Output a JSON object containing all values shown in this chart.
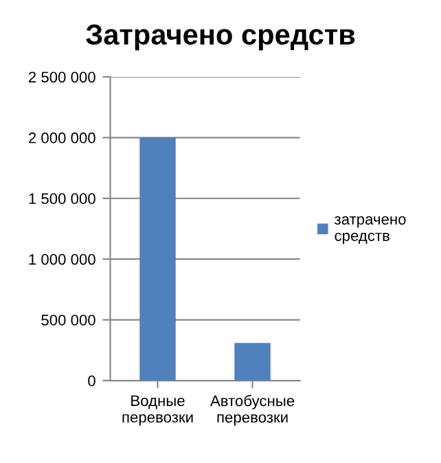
{
  "chart_data": {
    "type": "bar",
    "title": "Затрачено средств",
    "categories": [
      "Водные\nперевозки",
      "Автобусные\nперевозки"
    ],
    "series": [
      {
        "name": "затрачено\nсредств",
        "color": "#4f81bd",
        "values": [
          2000000,
          310000
        ]
      }
    ],
    "ylim": [
      0,
      2500000
    ],
    "yticks": [
      {
        "value": 0,
        "label": "0"
      },
      {
        "value": 500000,
        "label": "500 000"
      },
      {
        "value": 1000000,
        "label": "1 000 000"
      },
      {
        "value": 1500000,
        "label": "1 500 000"
      },
      {
        "value": 2000000,
        "label": "2 000 000"
      },
      {
        "value": 2500000,
        "label": "2 500 000"
      }
    ],
    "grid": "y",
    "legend": "right"
  }
}
